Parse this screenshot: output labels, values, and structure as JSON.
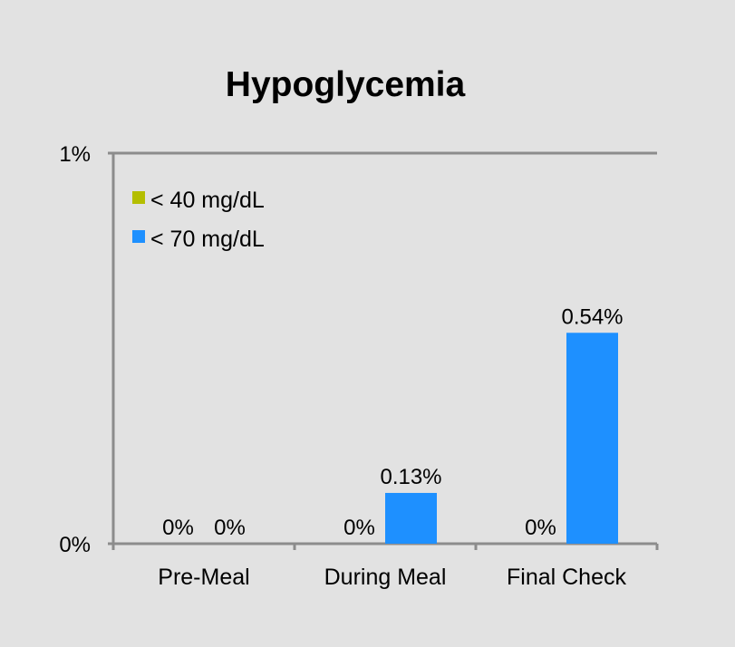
{
  "chart_data": {
    "type": "bar",
    "title": "Hypoglycemia",
    "xlabel": "",
    "ylabel": "",
    "categories": [
      "Pre-Meal",
      "During Meal",
      "Final Check"
    ],
    "series": [
      {
        "name": "< 40 mg/dL",
        "color": "#b4be00",
        "values": [
          0,
          0,
          0
        ],
        "labels": [
          "0%",
          "0%",
          "0%"
        ]
      },
      {
        "name": "< 70 mg/dL",
        "color": "#1e90ff",
        "values": [
          0,
          0.13,
          0.54
        ],
        "labels": [
          "0%",
          "0.13%",
          "0.54%"
        ]
      }
    ],
    "ylim": [
      0,
      1
    ],
    "yticks": [
      {
        "value": 0,
        "label": "0%"
      },
      {
        "value": 1,
        "label": "1%"
      }
    ],
    "grid": false,
    "legend_position": "top-left"
  }
}
